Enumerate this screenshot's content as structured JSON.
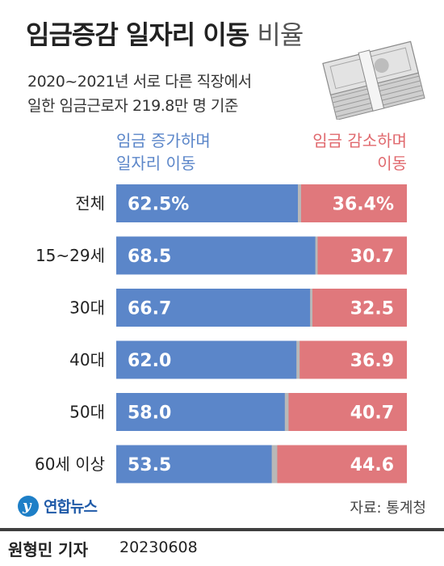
{
  "header": {
    "title_main": "임금증감 일자리 이동",
    "title_light": "비율",
    "subtitle_line1": "2020~2021년 서로 다른 직장에서",
    "subtitle_line2": "일한 임금근로자 219.8만 명 기준"
  },
  "legend": {
    "left_line1": "임금 증가하며",
    "left_line2": "일자리 이동",
    "right_line1": "임금 감소하며",
    "right_line2": "이동"
  },
  "colors": {
    "increase": "#5b86c9",
    "decrease": "#e0787c",
    "no_change": "#b8b8b8",
    "increase_text": "#5b86c9",
    "decrease_text": "#e0696e"
  },
  "chart_data": {
    "type": "bar",
    "orientation": "horizontal-stacked",
    "categories": [
      "전체",
      "15~29세",
      "30대",
      "40대",
      "50대",
      "60세 이상"
    ],
    "series": [
      {
        "name": "임금 증가하며 일자리 이동",
        "values": [
          62.5,
          68.5,
          66.7,
          62.0,
          58.0,
          53.5
        ],
        "labels": [
          "62.5%",
          "68.5",
          "66.7",
          "62.0",
          "58.0",
          "53.5"
        ]
      },
      {
        "name": "임금 감소하며 이동",
        "values": [
          36.4,
          30.7,
          32.5,
          36.9,
          40.7,
          44.6
        ],
        "labels": [
          "36.4%",
          "30.7",
          "32.5",
          "36.9",
          "40.7",
          "44.6"
        ]
      }
    ],
    "xlim": [
      0,
      100
    ]
  },
  "footer": {
    "logo_text": "연합뉴스",
    "logo_glyph": "y",
    "source": "자료: 통계청",
    "reporter": "원형민 기자",
    "date": "20230608"
  }
}
